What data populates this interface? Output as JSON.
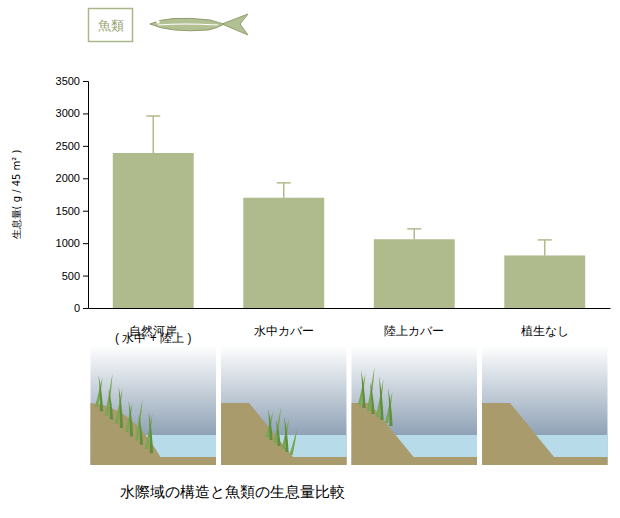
{
  "chart_data": {
    "type": "bar",
    "title": "水際域の構造と魚類の生息量比較",
    "subtitle": "魚類",
    "ylabel": "生息量( g / 45 m² )",
    "categories": [
      "自然河岸\n( 水中 + 陸上 )",
      "水中カバー",
      "陸上カバー",
      "植生なし"
    ],
    "values": [
      2390,
      1700,
      1060,
      810
    ],
    "errors": [
      570,
      230,
      160,
      240
    ],
    "color": "#afbb8c",
    "ylim": [
      0,
      3500
    ],
    "yticks": [
      0,
      500,
      1000,
      1500,
      2000,
      2500,
      3000,
      3500
    ],
    "grid": false
  }
}
